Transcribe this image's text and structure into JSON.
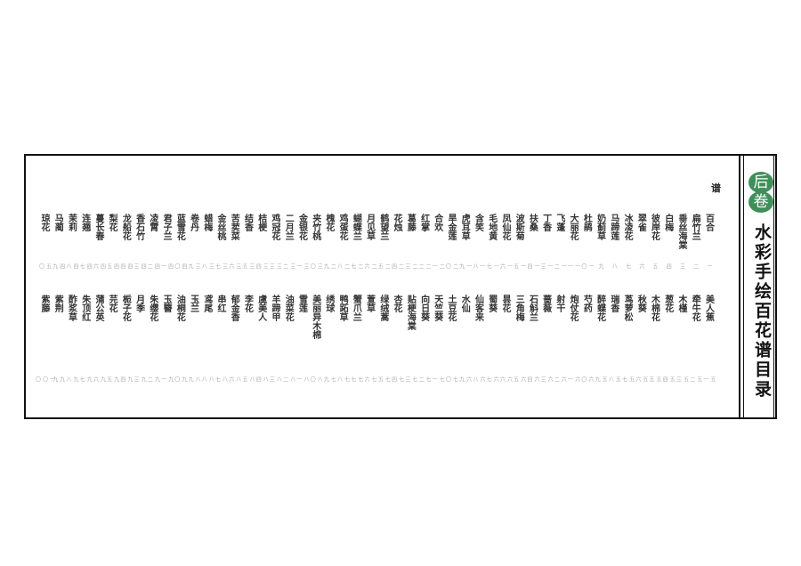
{
  "header": {
    "volume_badge": [
      "后",
      "卷"
    ],
    "title": "水彩手绘百花谱目录",
    "corner_char": "谱",
    "accent_color": "#3f8f5a"
  },
  "entries_top": [
    {
      "name": "百合",
      "page": "一"
    },
    {
      "name": "扁竹兰",
      "page": "二"
    },
    {
      "name": "垂丝海棠",
      "page": "三"
    },
    {
      "name": "白梅",
      "page": "四"
    },
    {
      "name": "彼岸花",
      "page": "五"
    },
    {
      "name": "翠雀",
      "page": "六"
    },
    {
      "name": "冰凌花",
      "page": "七"
    },
    {
      "name": "马蹄莲",
      "page": "八"
    },
    {
      "name": "奶蓟草",
      "page": "九"
    },
    {
      "name": "杜鹃",
      "page": "一〇"
    },
    {
      "name": "大丽花",
      "page": "一一"
    },
    {
      "name": "飞蓬",
      "page": "一二"
    },
    {
      "name": "丁香",
      "page": "一三"
    },
    {
      "name": "扶桑",
      "page": "一四"
    },
    {
      "name": "波斯菊",
      "page": "一五"
    },
    {
      "name": "凤仙花",
      "page": "一六"
    },
    {
      "name": "毛地黄",
      "page": "一七"
    },
    {
      "name": "含笑",
      "page": "一八"
    },
    {
      "name": "虎耳草",
      "page": "一九"
    },
    {
      "name": "旱金莲",
      "page": "二〇"
    },
    {
      "name": "合欢",
      "page": "二一"
    },
    {
      "name": "红掌",
      "page": "二二"
    },
    {
      "name": "葛藤",
      "page": "二三"
    },
    {
      "name": "花烛",
      "page": "二四"
    },
    {
      "name": "鹤望兰",
      "page": "二五"
    },
    {
      "name": "月见草",
      "page": "二六"
    },
    {
      "name": "蝴蝶兰",
      "page": "二七"
    },
    {
      "name": "鸡蛋花",
      "page": "二八"
    },
    {
      "name": "槐花",
      "page": "二九"
    },
    {
      "name": "夹竹桃",
      "page": "三〇"
    },
    {
      "name": "金银花",
      "page": "三一"
    },
    {
      "name": "二月兰",
      "page": "三二"
    },
    {
      "name": "鸡冠花",
      "page": "三三"
    },
    {
      "name": "桔梗",
      "page": "三四"
    },
    {
      "name": "结香",
      "page": "三五"
    },
    {
      "name": "苦荬菜",
      "page": "三六"
    },
    {
      "name": "金丝桃",
      "page": "三七"
    },
    {
      "name": "蜡梅",
      "page": "三八"
    },
    {
      "name": "卷丹",
      "page": "三九"
    },
    {
      "name": "蓝雪花",
      "page": "四〇"
    },
    {
      "name": "君子兰",
      "page": "四一"
    },
    {
      "name": "凌霄",
      "page": "四二"
    },
    {
      "name": "香石竹",
      "page": "四三"
    },
    {
      "name": "龙船花",
      "page": "四四"
    },
    {
      "name": "梨花",
      "page": "四五"
    },
    {
      "name": "蔓长春",
      "page": "四六"
    },
    {
      "name": "连翘",
      "page": "四七"
    },
    {
      "name": "茉莉",
      "page": "四八"
    },
    {
      "name": "马蔺",
      "page": "四九"
    },
    {
      "name": "琼花",
      "page": "五〇"
    }
  ],
  "entries_bottom": [
    {
      "name": "美人蕉",
      "page": "五一"
    },
    {
      "name": "牵牛花",
      "page": "五二"
    },
    {
      "name": "木槿",
      "page": "五三"
    },
    {
      "name": "葱花",
      "page": "五四"
    },
    {
      "name": "木棉花",
      "page": "五五"
    },
    {
      "name": "秋葵",
      "page": "五六"
    },
    {
      "name": "茑萝松",
      "page": "五七"
    },
    {
      "name": "瑞香",
      "page": "五八"
    },
    {
      "name": "醉蝶花",
      "page": "五九"
    },
    {
      "name": "芍药",
      "page": "六〇"
    },
    {
      "name": "炮仗花",
      "page": "六一"
    },
    {
      "name": "射干",
      "page": "六二"
    },
    {
      "name": "蔷薇",
      "page": "六三"
    },
    {
      "name": "石斛兰",
      "page": "六四"
    },
    {
      "name": "三角梅",
      "page": "六五"
    },
    {
      "name": "昙花",
      "page": "六六"
    },
    {
      "name": "蜀葵",
      "page": "六七"
    },
    {
      "name": "仙客来",
      "page": "六八"
    },
    {
      "name": "水仙",
      "page": "六九"
    },
    {
      "name": "土豆花",
      "page": "七〇"
    },
    {
      "name": "天竺葵",
      "page": "七一"
    },
    {
      "name": "向日葵",
      "page": "七二"
    },
    {
      "name": "贴梗海棠",
      "page": "七三"
    },
    {
      "name": "杏花",
      "page": "七四"
    },
    {
      "name": "绿绒蒿",
      "page": "七五"
    },
    {
      "name": "萱草",
      "page": "七六"
    },
    {
      "name": "蟹爪兰",
      "page": "七七"
    },
    {
      "name": "鸭跖草",
      "page": "七八"
    },
    {
      "name": "绣球",
      "page": "七九"
    },
    {
      "name": "美丽异木棉",
      "page": "八〇"
    },
    {
      "name": "雪莲",
      "page": "八一"
    },
    {
      "name": "油菜花",
      "page": "八二"
    },
    {
      "name": "羊蹄甲",
      "page": "八三"
    },
    {
      "name": "虞美人",
      "page": "八四"
    },
    {
      "name": "李花",
      "page": "八五"
    },
    {
      "name": "郁金香",
      "page": "八六"
    },
    {
      "name": "串红",
      "page": "八七"
    },
    {
      "name": "鸢尾",
      "page": "八八"
    },
    {
      "name": "玉兰",
      "page": "八九"
    },
    {
      "name": "油桐花",
      "page": "九〇"
    },
    {
      "name": "玉簪",
      "page": "九一"
    },
    {
      "name": "朱缨花",
      "page": "九二"
    },
    {
      "name": "月季",
      "page": "九三"
    },
    {
      "name": "栀子花",
      "page": "九四"
    },
    {
      "name": "芫花",
      "page": "九五"
    },
    {
      "name": "蒲公英",
      "page": "九六"
    },
    {
      "name": "朱顶红",
      "page": "九七"
    },
    {
      "name": "酢浆草",
      "page": "九八"
    },
    {
      "name": "紫荆",
      "page": "九九"
    },
    {
      "name": "紫藤",
      "page": "一〇〇"
    }
  ]
}
